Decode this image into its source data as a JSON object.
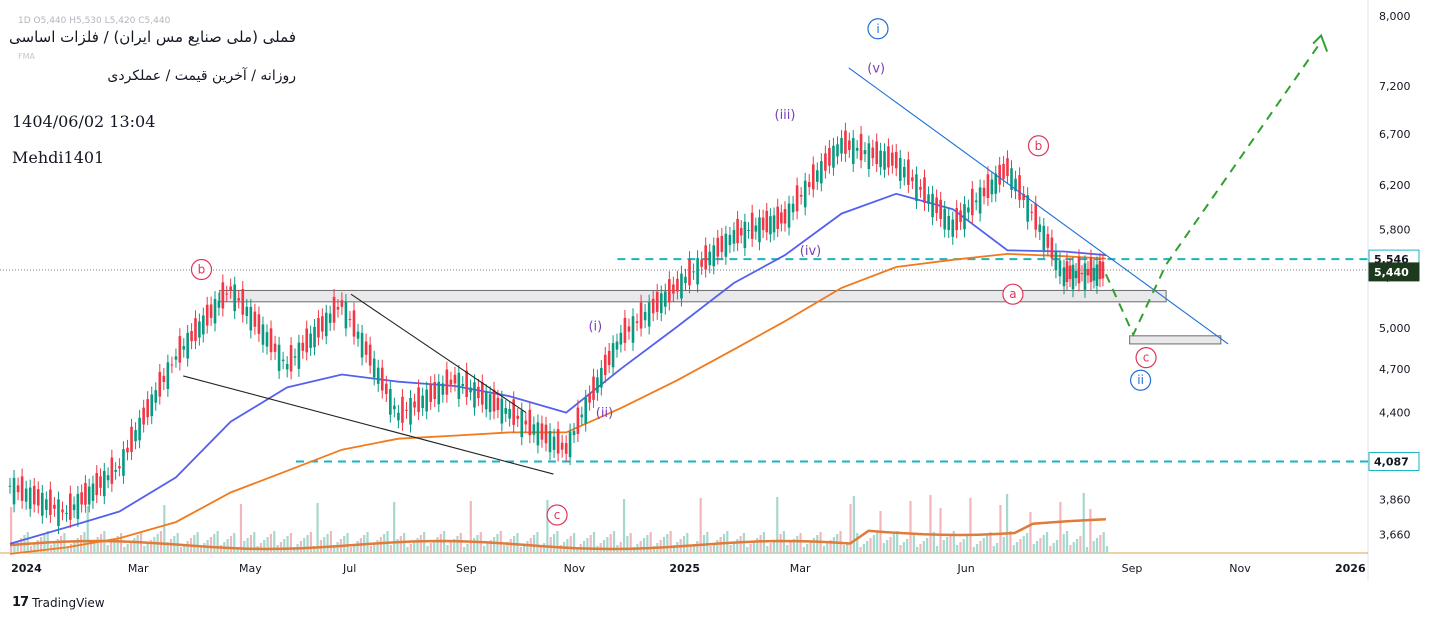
{
  "header": {
    "title": "فملی (ملی صنایع مس ایران) / فلزات اساسی",
    "subtitle": "روزانه / آخرین قیمت / عملکردی",
    "datetime": "1404/06/02 13:04",
    "author": "Mehdi1401",
    "ohlc": "1D  O5,440  H5,530  L5,420  C5,440",
    "indicator": "FMA"
  },
  "branding": {
    "name": "TradingView"
  },
  "colors": {
    "up": "#089981",
    "down": "#f23645",
    "ma_fast": "#5461f0",
    "ma_slow": "#f07a1d",
    "support": "#19b5c3",
    "forecast": "#2fa12f",
    "wave_major": "#1e6fd8",
    "wave_minor": "#7b3fb5",
    "wave_corr": "#e0365a",
    "trendline": "#1a5fcc"
  },
  "chart_data": {
    "type": "line",
    "title": "",
    "price_scale": "log",
    "ylim": [
      3560,
      8100
    ],
    "y_ticks": [
      3660,
      3860,
      4100,
      4400,
      4700,
      5000,
      5400,
      5800,
      6200,
      6700,
      7200,
      8000
    ],
    "x_labels": [
      "2024",
      "Mar",
      "May",
      "Jul",
      "Sep",
      "Nov",
      "2025",
      "Mar",
      "Jun",
      "Sep",
      "Nov",
      "2026"
    ],
    "x_label_bold": [
      "2024",
      "2025",
      "2026"
    ],
    "x_dates": [
      "2024-01-01",
      "2024-02-01",
      "2024-03-01",
      "2024-04-01",
      "2024-05-01",
      "2024-06-01",
      "2024-07-01",
      "2024-08-01",
      "2024-09-01",
      "2024-10-01",
      "2024-11-01",
      "2024-12-01",
      "2025-01-01",
      "2025-02-01",
      "2025-03-01",
      "2025-04-01",
      "2025-05-01",
      "2025-06-01",
      "2025-07-01",
      "2025-08-01",
      "2025-08-24"
    ],
    "price_close": [
      3940,
      3780,
      4050,
      4780,
      5300,
      4720,
      5180,
      4380,
      4620,
      4400,
      4160,
      4930,
      5320,
      5750,
      5900,
      6600,
      6420,
      5830,
      6350,
      5420,
      5440
    ],
    "ma_fast": [
      3610,
      3700,
      3790,
      3990,
      4340,
      4570,
      4660,
      4610,
      4580,
      4510,
      4400,
      4700,
      5010,
      5350,
      5580,
      5940,
      6120,
      5980,
      5620,
      5610,
      5580
    ],
    "ma_slow": [
      3555,
      3590,
      3640,
      3730,
      3900,
      4030,
      4160,
      4230,
      4250,
      4270,
      4270,
      4430,
      4620,
      4840,
      5050,
      5310,
      5480,
      5540,
      5590,
      5570,
      5550
    ],
    "price_labels": [
      {
        "value": 5546,
        "text": "5,546",
        "style": "support"
      },
      {
        "value": 5440,
        "text": "5,440",
        "style": "last"
      },
      {
        "value": 4087,
        "text": "4,087",
        "style": "support"
      }
    ],
    "support_levels": [
      5546,
      4087
    ],
    "zones": [
      {
        "from": "2024-04-25",
        "to": "2025-09-26",
        "low": 5200,
        "high": 5290
      },
      {
        "from": "2025-09-06",
        "to": "2025-10-26",
        "low": 4880,
        "high": 4940
      }
    ],
    "trendlines": [
      {
        "points": [
          [
            "2025-04-05",
            7400
          ],
          [
            "2025-10-30",
            4880
          ]
        ],
        "color": "wave_major"
      },
      {
        "points": [
          [
            "2024-07-06",
            5260
          ],
          [
            "2024-10-10",
            4400
          ]
        ],
        "color": "dark"
      },
      {
        "points": [
          [
            "2024-04-05",
            4650
          ],
          [
            "2024-10-25",
            4010
          ]
        ],
        "color": "dark"
      }
    ],
    "forecast": [
      [
        "2025-08-24",
        5420
      ],
      [
        "2025-09-08",
        4950
      ],
      [
        "2025-09-26",
        5500
      ],
      [
        "2025-12-20",
        7700
      ]
    ],
    "wave_labels": [
      {
        "text": "i",
        "date": "2025-04-21",
        "value": 7850,
        "style": "major"
      },
      {
        "text": "ii",
        "date": "2025-09-12",
        "value": 4620,
        "style": "major"
      },
      {
        "text": "(i)",
        "date": "2024-11-17",
        "value": 4980,
        "style": "minor"
      },
      {
        "text": "(ii)",
        "date": "2024-11-22",
        "value": 4370,
        "style": "minor"
      },
      {
        "text": "(iii)",
        "date": "2025-03-01",
        "value": 6850,
        "style": "minor"
      },
      {
        "text": "(iv)",
        "date": "2025-03-15",
        "value": 5580,
        "style": "minor"
      },
      {
        "text": "(v)",
        "date": "2025-04-20",
        "value": 7350,
        "style": "minor"
      },
      {
        "text": "b",
        "date": "2024-04-15",
        "value": 5460,
        "style": "corr"
      },
      {
        "text": "c",
        "date": "2024-10-27",
        "value": 3770,
        "style": "corr"
      },
      {
        "text": "a",
        "date": "2025-07-04",
        "value": 5260,
        "style": "corr"
      },
      {
        "text": "b",
        "date": "2025-07-18",
        "value": 6580,
        "style": "corr"
      },
      {
        "text": "c",
        "date": "2025-09-15",
        "value": 4780,
        "style": "corr"
      }
    ]
  }
}
